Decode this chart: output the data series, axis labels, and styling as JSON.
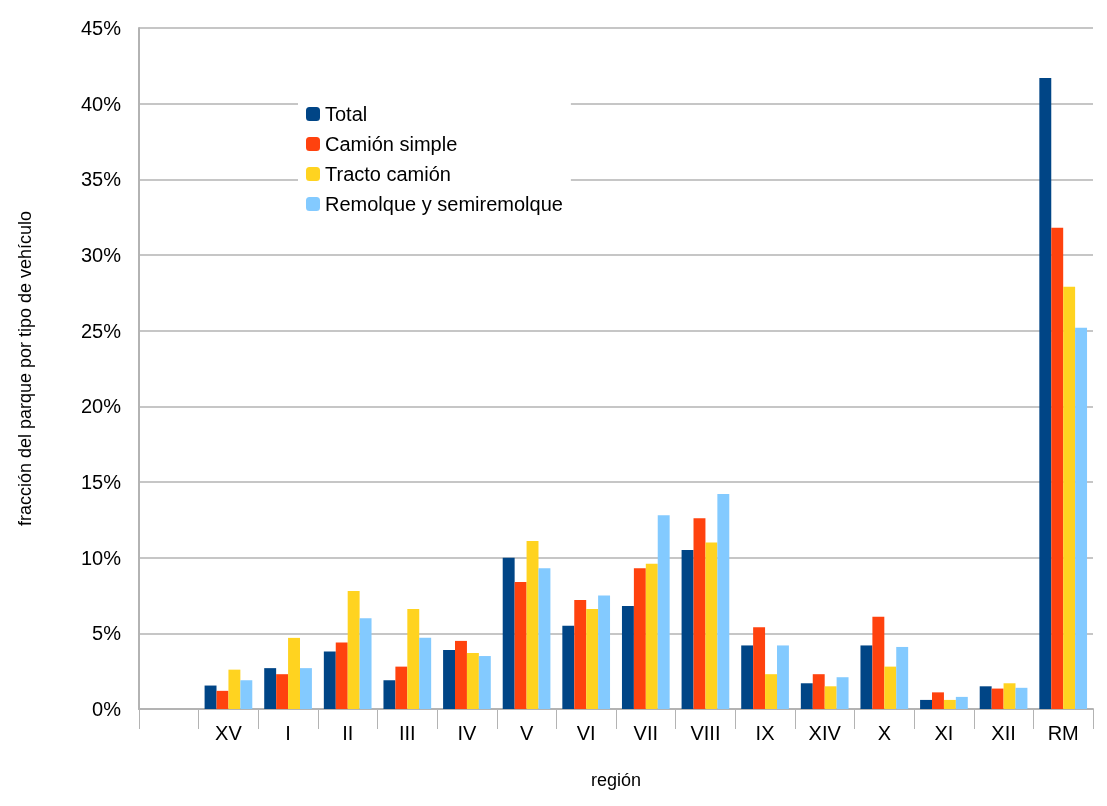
{
  "chart_data": {
    "type": "bar",
    "xlabel": "región",
    "ylabel": "fracción del parque por tipo de vehículo",
    "categories": [
      null,
      "XV",
      "I",
      "II",
      "III",
      "IV",
      "V",
      "VI",
      "VII",
      "VIII",
      "IX",
      "XIV",
      "X",
      "XI",
      "XII",
      "RM"
    ],
    "series": [
      {
        "name": "Total",
        "color": "#004586",
        "values": [
          null,
          1.55,
          2.7,
          3.8,
          1.9,
          3.9,
          10.0,
          5.5,
          6.8,
          10.5,
          4.2,
          1.7,
          4.2,
          0.6,
          1.5,
          41.7
        ]
      },
      {
        "name": "Camión simple",
        "color": "#ff420e",
        "values": [
          null,
          1.2,
          2.3,
          4.4,
          2.8,
          4.5,
          8.4,
          7.2,
          9.3,
          12.6,
          5.4,
          2.3,
          6.1,
          1.1,
          1.35,
          31.8
        ]
      },
      {
        "name": "Tracto camión",
        "color": "#ffd320",
        "values": [
          null,
          2.6,
          4.7,
          7.8,
          6.6,
          3.7,
          11.1,
          6.6,
          9.6,
          11.0,
          2.3,
          1.5,
          2.8,
          0.6,
          1.7,
          27.9
        ]
      },
      {
        "name": "Remolque y semiremolque",
        "color": "#83caff",
        "values": [
          null,
          1.9,
          2.7,
          6.0,
          4.7,
          3.5,
          9.3,
          7.5,
          12.8,
          14.2,
          4.2,
          2.1,
          4.1,
          0.8,
          1.4,
          25.2
        ]
      }
    ],
    "ylim": [
      0,
      45
    ],
    "yticks": [
      {
        "value": 0,
        "label": "0%"
      },
      {
        "value": 5,
        "label": "5%"
      },
      {
        "value": 10,
        "label": "10%"
      },
      {
        "value": 15,
        "label": "15%"
      },
      {
        "value": 20,
        "label": "20%"
      },
      {
        "value": 25,
        "label": "25%"
      },
      {
        "value": 30,
        "label": "30%"
      },
      {
        "value": 35,
        "label": "35%"
      },
      {
        "value": 40,
        "label": "40%"
      },
      {
        "value": 45,
        "label": "45%"
      }
    ],
    "grid": "y",
    "legend": "top left"
  }
}
